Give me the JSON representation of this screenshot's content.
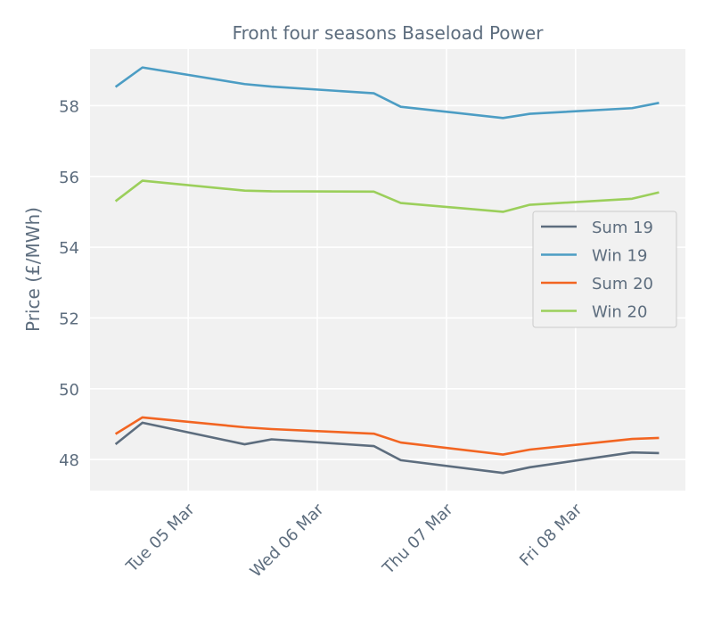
{
  "chart_data": {
    "type": "line",
    "title": "Front four seasons Baseload Power",
    "xlabel": "",
    "ylabel": "Price (£/MWh)",
    "x": [
      "Mon 04 Mar 10:30",
      "Mon 04 Mar 15:30",
      "Tue 05 Mar 10:30",
      "Tue 05 Mar 15:30",
      "Wed 06 Mar 10:30",
      "Wed 06 Mar 15:30",
      "Thu 07 Mar 10:30",
      "Thu 07 Mar 15:30",
      "Fri 08 Mar 10:30",
      "Fri 08 Mar 15:30"
    ],
    "x_days": [
      -0.5625,
      -0.354,
      0.4375,
      0.646,
      1.4375,
      1.646,
      2.4375,
      2.646,
      3.4375,
      3.646
    ],
    "xticks": [
      {
        "day": 0,
        "label": "Tue 05 Mar"
      },
      {
        "day": 1,
        "label": "Wed 06 Mar"
      },
      {
        "day": 2,
        "label": "Thu 07 Mar"
      },
      {
        "day": 3,
        "label": "Fri 08 Mar"
      }
    ],
    "xlim_days": [
      -0.76,
      3.85
    ],
    "yticks": [
      48,
      50,
      52,
      54,
      56,
      58
    ],
    "ylim": [
      47.12,
      59.6
    ],
    "grid": true,
    "legend_position": "center-right",
    "series": [
      {
        "name": "Sum 19",
        "color": "#5d6d7e",
        "values": [
          48.43,
          49.04,
          48.43,
          48.57,
          48.38,
          47.98,
          47.62,
          47.78,
          48.2,
          48.18
        ]
      },
      {
        "name": "Win 19",
        "color": "#4c9dc4",
        "values": [
          58.53,
          59.08,
          58.61,
          58.54,
          58.35,
          57.97,
          57.65,
          57.77,
          57.93,
          58.08
        ]
      },
      {
        "name": "Sum 20",
        "color": "#f26522",
        "values": [
          48.72,
          49.19,
          48.91,
          48.86,
          48.73,
          48.48,
          48.14,
          48.28,
          48.58,
          48.61
        ]
      },
      {
        "name": "Win 20",
        "color": "#9bcf5b",
        "values": [
          55.3,
          55.88,
          55.6,
          55.58,
          55.57,
          55.25,
          55.0,
          55.2,
          55.37,
          55.55
        ]
      }
    ]
  }
}
